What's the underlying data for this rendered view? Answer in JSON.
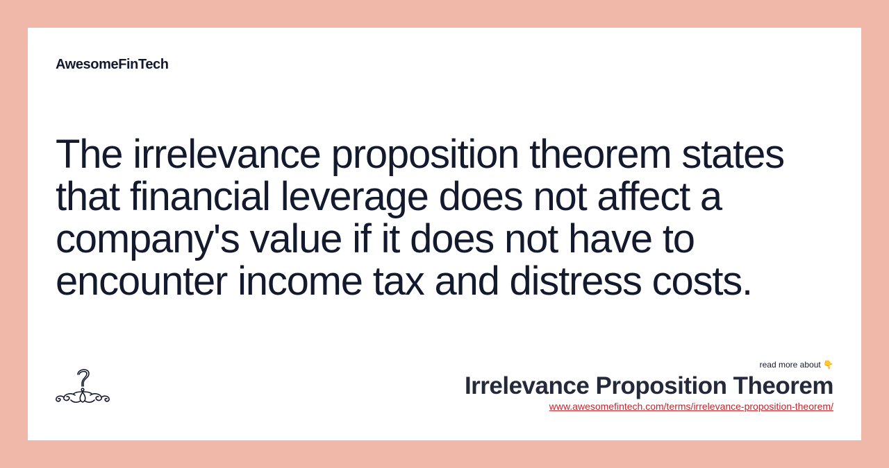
{
  "brand": {
    "name": "AwesomeFinTech"
  },
  "quote": {
    "text": "The irrelevance proposition theorem states that financial leverage does not affect a company's value if it does not have to encounter income tax and distress costs."
  },
  "footer": {
    "read_more": "read more about",
    "pointer_emoji": "👇",
    "term_title": "Irrelevance Proposition Theorem",
    "term_url": "www.awesomefintech.com/terms/irrelevance-proposition-theorem/"
  },
  "icons": {
    "ornament": "question-ornament-icon",
    "pointer": "pointing-down-icon"
  },
  "colors": {
    "background": "#f0b8a9",
    "card": "#ffffff",
    "text": "#141a2e",
    "link": "#c1272d"
  }
}
